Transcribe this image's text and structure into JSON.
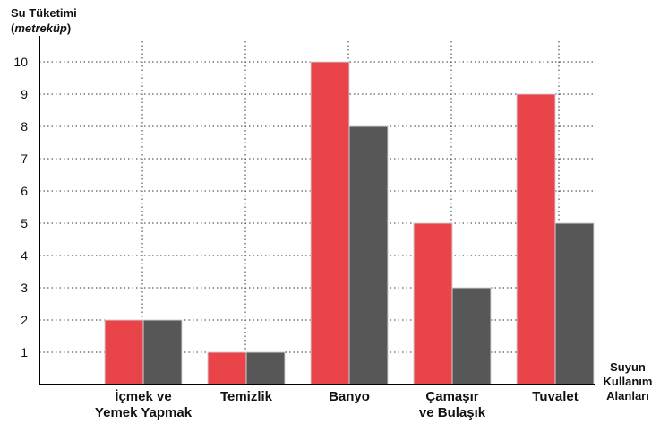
{
  "chart_data": {
    "type": "bar",
    "ylabel_line1": "Su Tüketimi",
    "ylabel_line2": "metreküp",
    "xlabel_lines": [
      "Suyun",
      "Kullanım",
      "Alanları"
    ],
    "categories": [
      [
        "İçmek ve",
        "Yemek Yapmak"
      ],
      [
        "Temizlik"
      ],
      [
        "Banyo"
      ],
      [
        "Çamaşır",
        "ve Bulaşık"
      ],
      [
        "Tuvalet"
      ]
    ],
    "series": [
      {
        "color": "#e8444a",
        "values": [
          2,
          1,
          10,
          5,
          9
        ]
      },
      {
        "color": "#575757",
        "values": [
          2,
          1,
          8,
          3,
          5
        ]
      }
    ],
    "yticks": [
      1,
      2,
      3,
      4,
      5,
      6,
      7,
      8,
      9,
      10
    ],
    "ylim": [
      0,
      11
    ],
    "grid": true
  }
}
